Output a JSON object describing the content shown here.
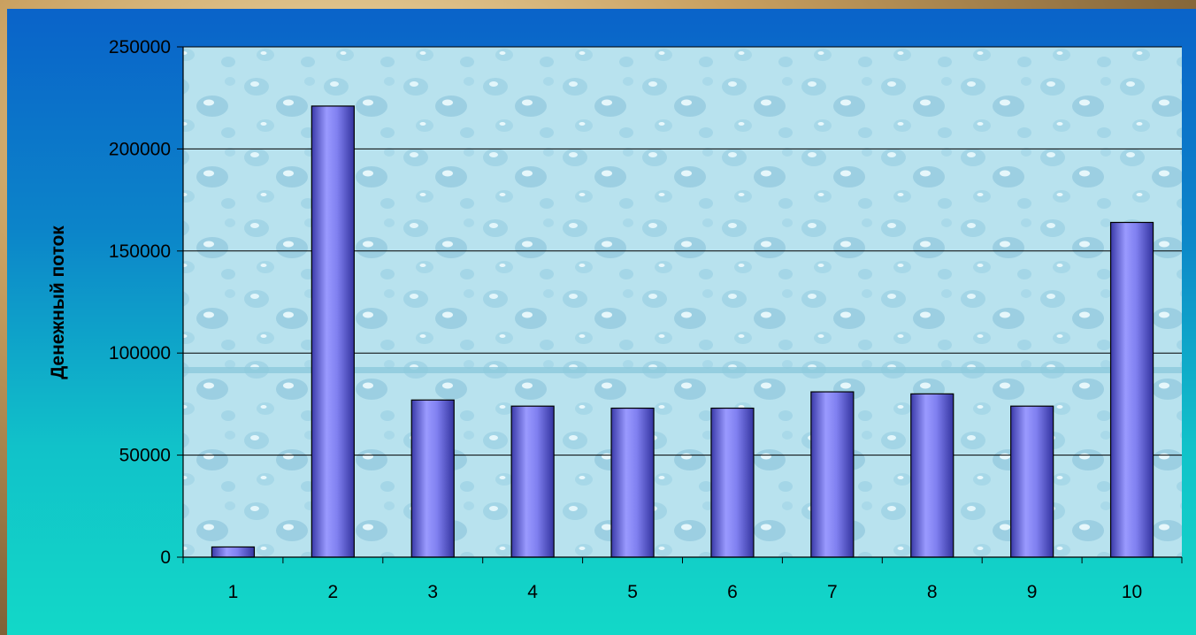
{
  "chart_data": {
    "type": "bar",
    "categories": [
      "1",
      "2",
      "3",
      "4",
      "5",
      "6",
      "7",
      "8",
      "9",
      "10"
    ],
    "values": [
      5000,
      221000,
      77000,
      74000,
      73000,
      73000,
      81000,
      80000,
      74000,
      164000
    ],
    "title": "",
    "xlabel": "",
    "ylabel": "Денежный поток",
    "ylim": [
      0,
      250000
    ],
    "yticks": [
      "0",
      "50000",
      "100000",
      "150000",
      "200000",
      "250000"
    ],
    "grid": true,
    "legend": "none",
    "bar_color": "#7777ee",
    "plot_background": "#bfe6f0"
  }
}
